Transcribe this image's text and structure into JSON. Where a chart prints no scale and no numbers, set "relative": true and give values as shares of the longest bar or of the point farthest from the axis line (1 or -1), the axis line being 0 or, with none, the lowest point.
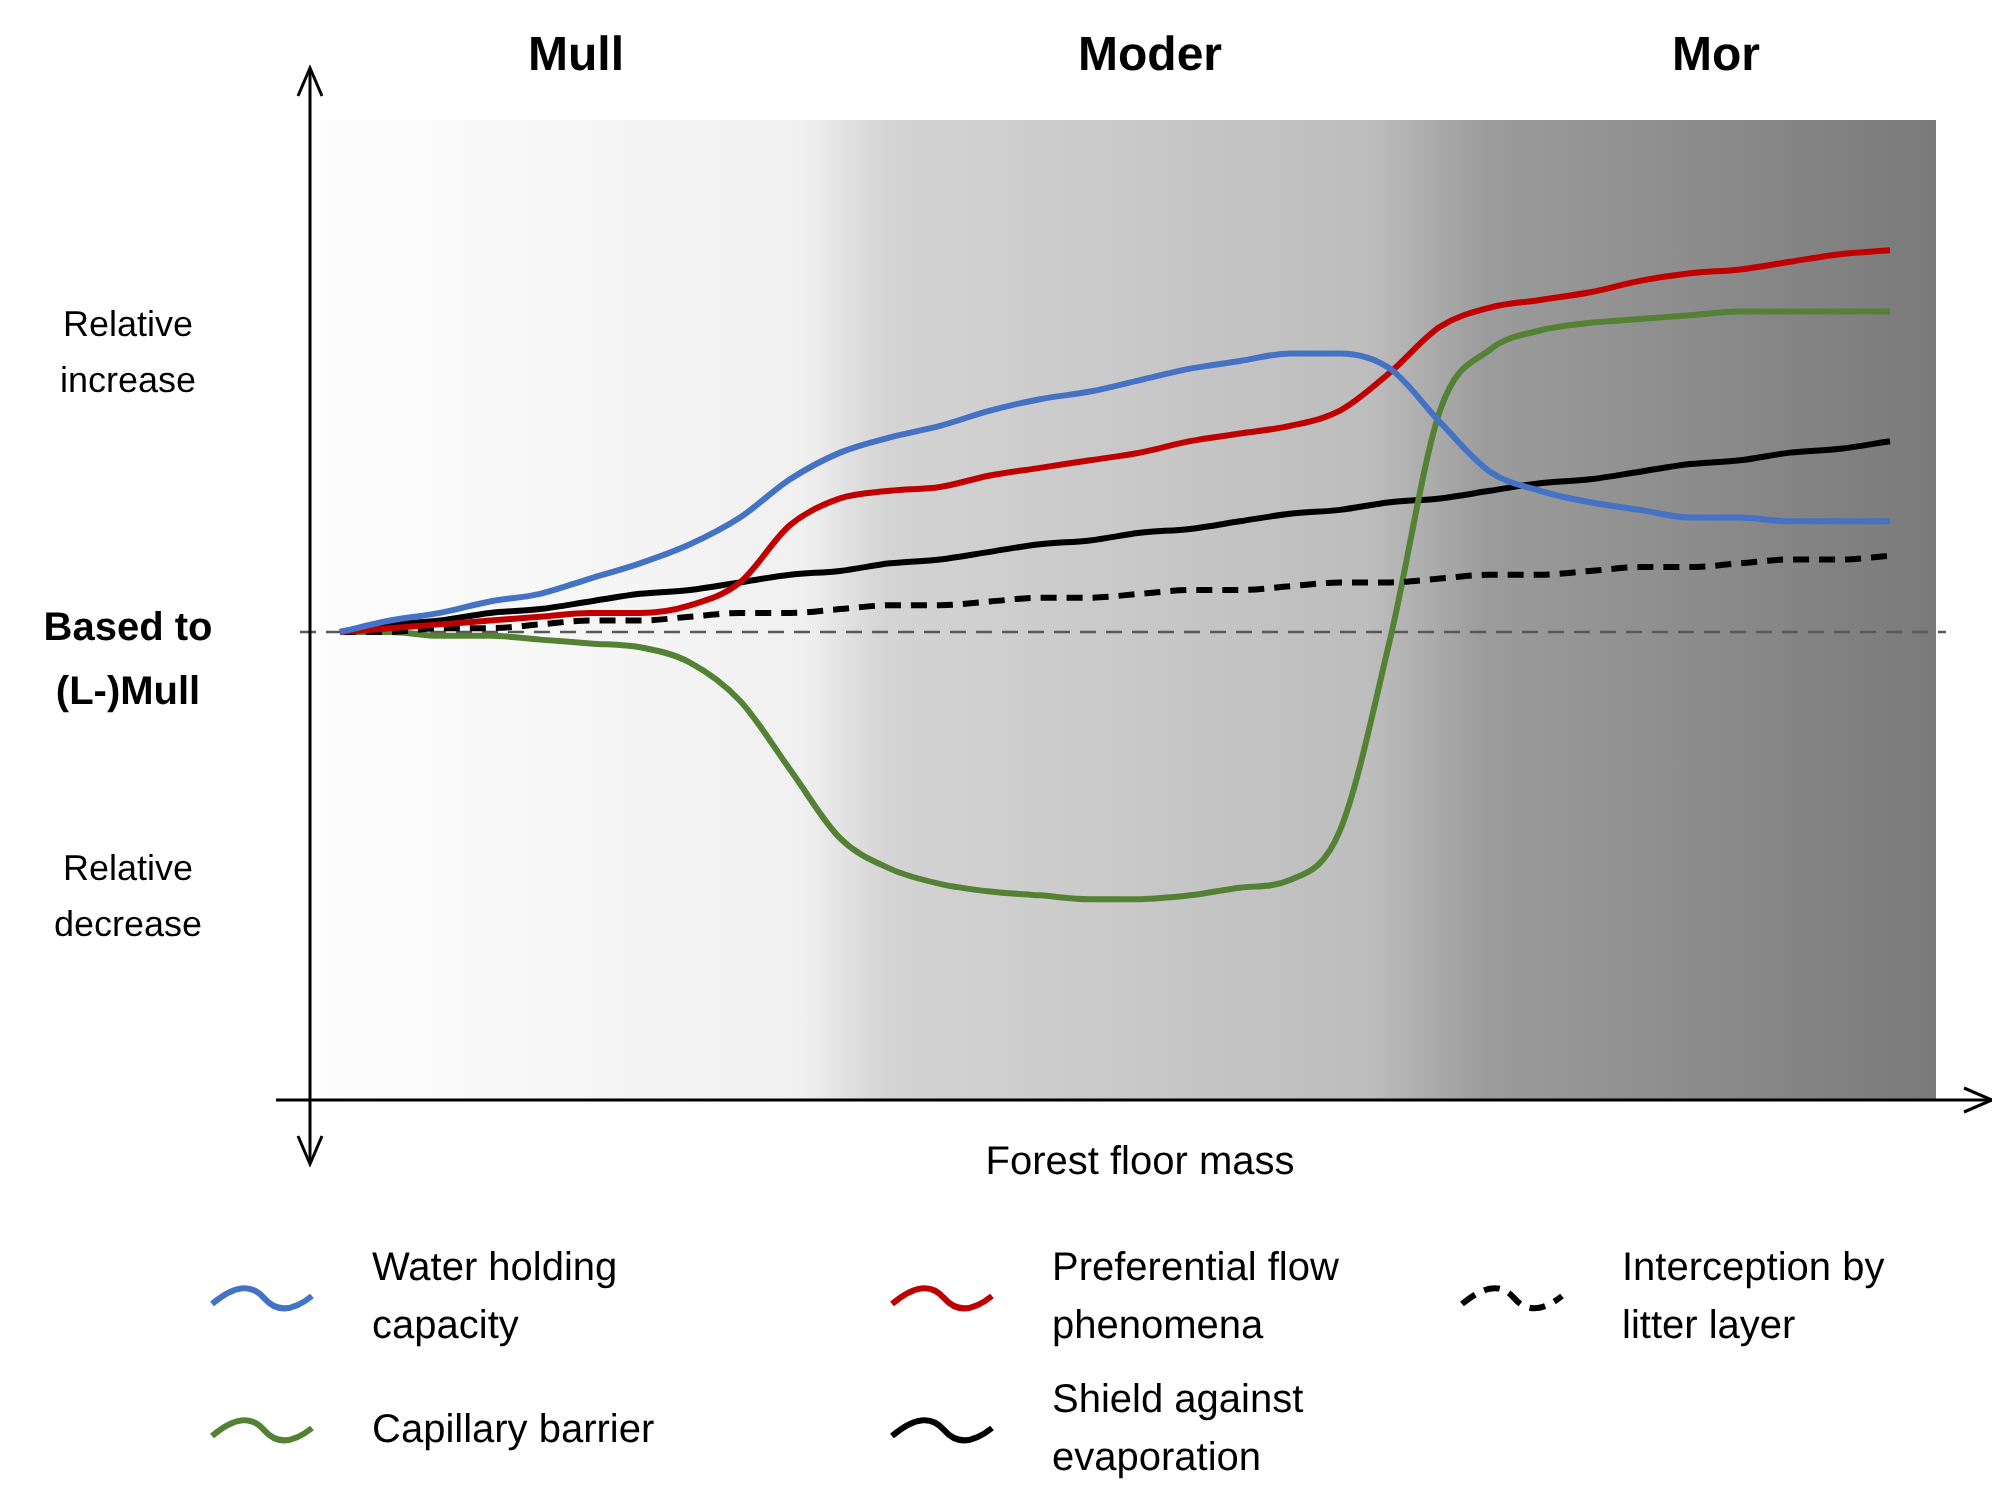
{
  "chart_data": {
    "type": "line",
    "relative": true,
    "marker": "none",
    "legend": "bottom",
    "annotations": [
      "Mull",
      "Moder",
      "Mor",
      "Relative increase",
      "Based to (L-)Mull",
      "Relative decrease",
      "Forest floor mass"
    ],
    "categories": [
      null,
      null,
      null,
      null,
      null,
      null,
      null,
      null,
      null,
      null,
      null,
      null,
      null,
      null,
      null,
      null,
      null,
      null,
      null,
      null,
      null,
      null,
      null,
      null,
      null,
      null,
      null,
      null,
      null,
      null,
      null,
      null
    ],
    "ref_lines": [
      {
        "axis": "y",
        "value": 0,
        "color": "#595959",
        "line_style": "dashed"
      }
    ],
    "series": [
      {
        "name": "Water holding capacity",
        "color": "#4472c4",
        "values": [
          0,
          0.03,
          0.05,
          0.08,
          0.1,
          0.14,
          0.18,
          0.23,
          0.3,
          0.4,
          0.47,
          0.51,
          0.54,
          0.58,
          0.61,
          0.63,
          0.66,
          0.69,
          0.71,
          0.73,
          0.73,
          0.69,
          0.55,
          0.42,
          0.37,
          0.34,
          0.32,
          0.3,
          0.3,
          0.29,
          0.29,
          0.29
        ]
      },
      {
        "name": "Preferential flow phenomena",
        "color": "#c00000",
        "values": [
          0,
          0.01,
          0.02,
          0.03,
          0.04,
          0.05,
          0.05,
          0.07,
          0.13,
          0.28,
          0.35,
          0.37,
          0.38,
          0.41,
          0.43,
          0.45,
          0.47,
          0.5,
          0.52,
          0.54,
          0.58,
          0.68,
          0.8,
          0.85,
          0.87,
          0.89,
          0.92,
          0.94,
          0.95,
          0.97,
          0.99,
          1
        ]
      },
      {
        "name": "Interception by litter layer",
        "color": "#000000",
        "line_style": "dashed",
        "values": [
          0,
          0,
          0.01,
          0.01,
          0.02,
          0.03,
          0.03,
          0.04,
          0.05,
          0.05,
          0.06,
          0.07,
          0.07,
          0.08,
          0.09,
          0.09,
          0.1,
          0.11,
          0.11,
          0.12,
          0.13,
          0.13,
          0.14,
          0.15,
          0.15,
          0.16,
          0.17,
          0.17,
          0.18,
          0.19,
          0.19,
          0.2
        ]
      },
      {
        "name": "Capillary barrier",
        "color": "#548235",
        "values": [
          0,
          0,
          -0.01,
          -0.01,
          -0.02,
          -0.03,
          -0.04,
          -0.08,
          -0.18,
          -0.36,
          -0.54,
          -0.62,
          -0.66,
          -0.68,
          -0.69,
          -0.7,
          -0.7,
          -0.69,
          -0.67,
          -0.65,
          -0.52,
          -0.02,
          0.58,
          0.74,
          0.79,
          0.81,
          0.82,
          0.83,
          0.84,
          0.84,
          0.84,
          0.84
        ]
      },
      {
        "name": "Shield against evaporation",
        "color": "#000000",
        "values": [
          0,
          0.02,
          0.03,
          0.05,
          0.06,
          0.08,
          0.1,
          0.11,
          0.13,
          0.15,
          0.16,
          0.18,
          0.19,
          0.21,
          0.23,
          0.24,
          0.26,
          0.27,
          0.29,
          0.31,
          0.32,
          0.34,
          0.35,
          0.37,
          0.39,
          0.4,
          0.42,
          0.44,
          0.45,
          0.47,
          0.48,
          0.5
        ]
      }
    ]
  }
}
